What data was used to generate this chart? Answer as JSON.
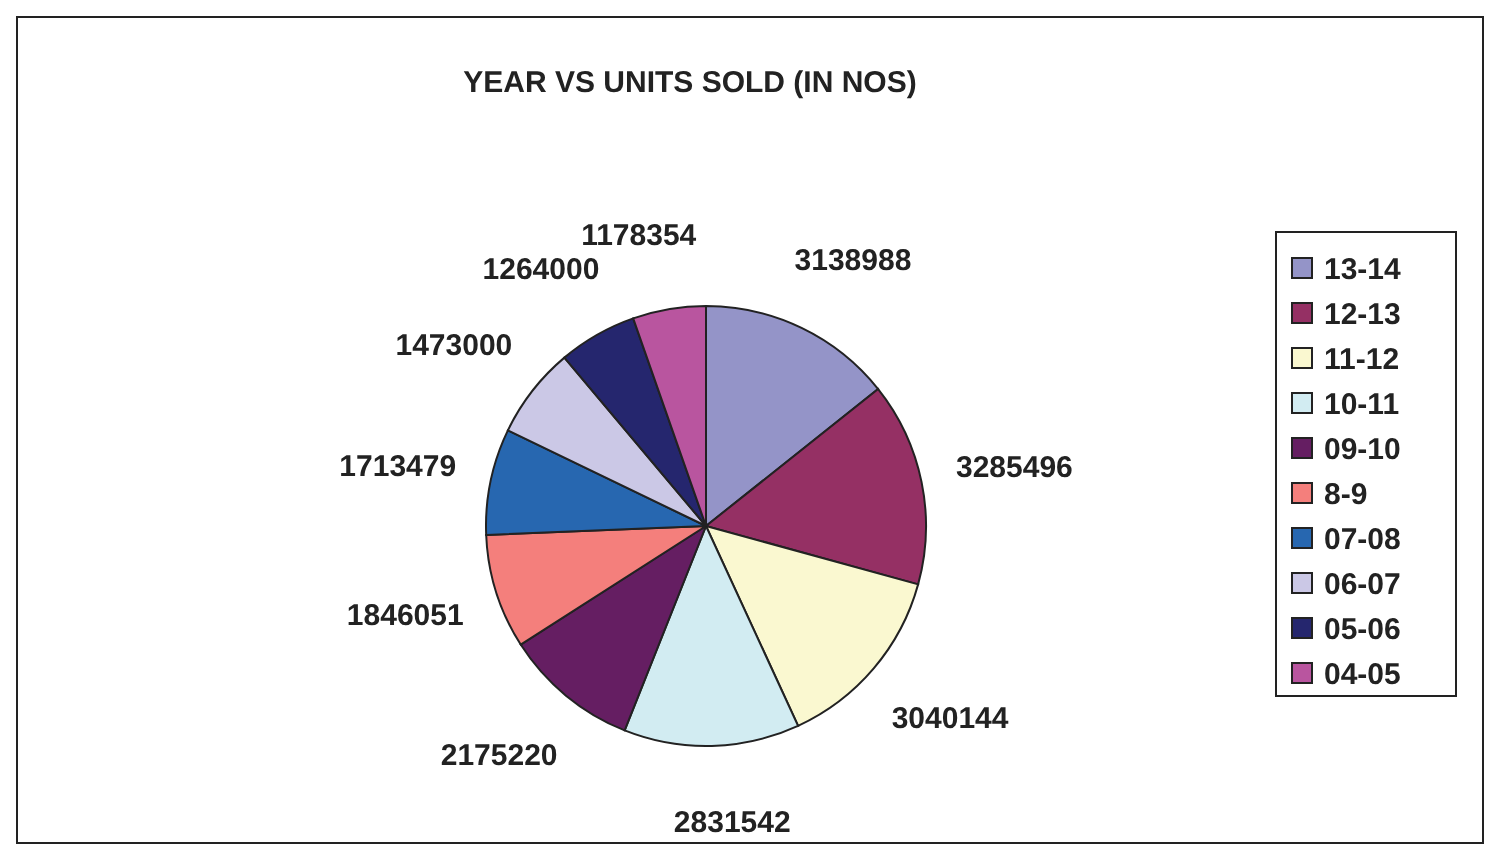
{
  "chart_data": {
    "type": "pie",
    "title": "YEAR VS UNITS SOLD (IN NOS)",
    "categories": [
      "13-14",
      "12-13",
      "11-12",
      "10-11",
      "09-10",
      "8-9",
      "07-08",
      "06-07",
      "05-06",
      "04-05"
    ],
    "values": [
      3138988,
      3285496,
      3040144,
      2831542,
      2175220,
      1846051,
      1713479,
      1473000,
      1264000,
      1178354
    ],
    "colors": [
      "#9494c8",
      "#953064",
      "#faf8d0",
      "#d2ecf2",
      "#651e62",
      "#f47f7c",
      "#2767b0",
      "#cbc8e6",
      "#25266e",
      "#b9559f"
    ],
    "data_labels": true,
    "legend": "right"
  }
}
